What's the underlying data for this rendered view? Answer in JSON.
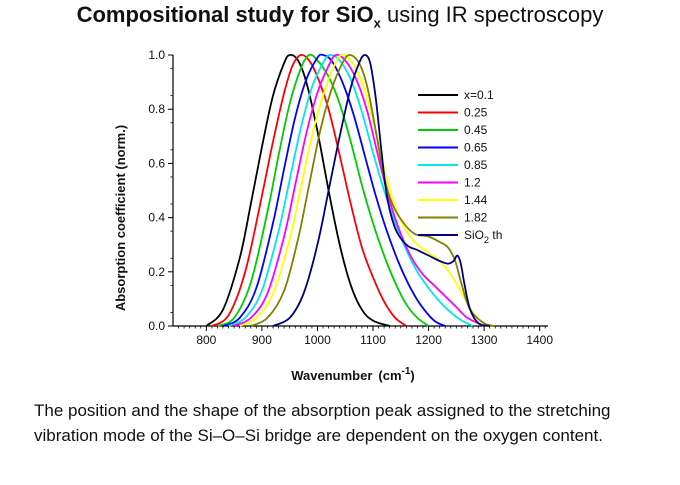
{
  "title": {
    "bold_text": "Compositional study for SiO",
    "subscript": "x",
    "normal_text": " using IR spectroscopy"
  },
  "caption": "The position and the shape of the absorption peak assigned to the stretching vibration mode of the Si–O–Si bridge are dependent on the oxygen content.",
  "chart_data": {
    "type": "line",
    "xlabel": "Wavenumber (cm-1)",
    "xlabel_main": "Wavenumber",
    "xlabel_unit_base": "(cm",
    "xlabel_unit_sup": "-1",
    "xlabel_unit_close": ")",
    "ylabel": "Absorption coefficient (norm.)",
    "xlim": [
      740,
      1415
    ],
    "ylim": [
      0,
      1.0
    ],
    "xticks": [
      800,
      900,
      1000,
      1100,
      1200,
      1300,
      1400
    ],
    "yticks": [
      0.0,
      0.2,
      0.4,
      0.6,
      0.8,
      1.0
    ],
    "ytick_labels": [
      "0.0",
      "0.2",
      "0.4",
      "0.6",
      "0.8",
      "1.0"
    ],
    "legend_position": "top-right",
    "series": [
      {
        "name": "x=0.1",
        "color": "#000000",
        "points": [
          [
            800,
            0.0
          ],
          [
            830,
            0.06
          ],
          [
            860,
            0.25
          ],
          [
            880,
            0.45
          ],
          [
            900,
            0.66
          ],
          [
            920,
            0.85
          ],
          [
            940,
            0.97
          ],
          [
            950,
            1.0
          ],
          [
            965,
            0.98
          ],
          [
            980,
            0.9
          ],
          [
            1000,
            0.72
          ],
          [
            1020,
            0.5
          ],
          [
            1040,
            0.3
          ],
          [
            1060,
            0.15
          ],
          [
            1080,
            0.06
          ],
          [
            1100,
            0.02
          ],
          [
            1130,
            0.0
          ]
        ]
      },
      {
        "name": "0.25",
        "color": "#ff0000",
        "points": [
          [
            810,
            0.0
          ],
          [
            840,
            0.04
          ],
          [
            870,
            0.2
          ],
          [
            900,
            0.48
          ],
          [
            920,
            0.68
          ],
          [
            940,
            0.86
          ],
          [
            955,
            0.96
          ],
          [
            970,
            1.0
          ],
          [
            985,
            0.98
          ],
          [
            1000,
            0.92
          ],
          [
            1020,
            0.8
          ],
          [
            1040,
            0.63
          ],
          [
            1060,
            0.45
          ],
          [
            1080,
            0.29
          ],
          [
            1100,
            0.18
          ],
          [
            1120,
            0.09
          ],
          [
            1140,
            0.03
          ],
          [
            1160,
            0.0
          ]
        ]
      },
      {
        "name": "0.45",
        "color": "#00cc00",
        "points": [
          [
            820,
            0.0
          ],
          [
            850,
            0.03
          ],
          [
            880,
            0.16
          ],
          [
            910,
            0.42
          ],
          [
            930,
            0.63
          ],
          [
            950,
            0.82
          ],
          [
            970,
            0.95
          ],
          [
            985,
            1.0
          ],
          [
            1000,
            0.98
          ],
          [
            1020,
            0.92
          ],
          [
            1040,
            0.82
          ],
          [
            1060,
            0.68
          ],
          [
            1080,
            0.52
          ],
          [
            1100,
            0.38
          ],
          [
            1120,
            0.26
          ],
          [
            1140,
            0.16
          ],
          [
            1160,
            0.08
          ],
          [
            1180,
            0.03
          ],
          [
            1200,
            0.0
          ]
        ]
      },
      {
        "name": "0.65",
        "color": "#0000ff",
        "points": [
          [
            830,
            0.0
          ],
          [
            860,
            0.03
          ],
          [
            890,
            0.14
          ],
          [
            920,
            0.38
          ],
          [
            940,
            0.58
          ],
          [
            960,
            0.77
          ],
          [
            980,
            0.91
          ],
          [
            1000,
            0.99
          ],
          [
            1010,
            1.0
          ],
          [
            1025,
            0.98
          ],
          [
            1045,
            0.9
          ],
          [
            1065,
            0.78
          ],
          [
            1085,
            0.63
          ],
          [
            1105,
            0.48
          ],
          [
            1125,
            0.35
          ],
          [
            1145,
            0.24
          ],
          [
            1165,
            0.15
          ],
          [
            1185,
            0.08
          ],
          [
            1210,
            0.02
          ],
          [
            1230,
            0.0
          ]
        ]
      },
      {
        "name": "0.85",
        "color": "#00e5ee",
        "points": [
          [
            840,
            0.0
          ],
          [
            870,
            0.03
          ],
          [
            900,
            0.13
          ],
          [
            930,
            0.35
          ],
          [
            950,
            0.54
          ],
          [
            970,
            0.73
          ],
          [
            990,
            0.88
          ],
          [
            1010,
            0.97
          ],
          [
            1022,
            1.0
          ],
          [
            1040,
            0.98
          ],
          [
            1060,
            0.91
          ],
          [
            1080,
            0.79
          ],
          [
            1100,
            0.64
          ],
          [
            1120,
            0.5
          ],
          [
            1140,
            0.38
          ],
          [
            1160,
            0.28
          ],
          [
            1180,
            0.2
          ],
          [
            1200,
            0.14
          ],
          [
            1220,
            0.09
          ],
          [
            1240,
            0.05
          ],
          [
            1260,
            0.02
          ],
          [
            1280,
            0.0
          ]
        ]
      },
      {
        "name": "1.2",
        "color": "#ff00ff",
        "points": [
          [
            850,
            0.0
          ],
          [
            880,
            0.03
          ],
          [
            910,
            0.12
          ],
          [
            940,
            0.33
          ],
          [
            960,
            0.52
          ],
          [
            980,
            0.71
          ],
          [
            1000,
            0.86
          ],
          [
            1020,
            0.96
          ],
          [
            1033,
            1.0
          ],
          [
            1050,
            0.98
          ],
          [
            1070,
            0.91
          ],
          [
            1090,
            0.79
          ],
          [
            1110,
            0.62
          ],
          [
            1130,
            0.46
          ],
          [
            1150,
            0.34
          ],
          [
            1170,
            0.25
          ],
          [
            1190,
            0.19
          ],
          [
            1210,
            0.15
          ],
          [
            1230,
            0.11
          ],
          [
            1250,
            0.07
          ],
          [
            1270,
            0.03
          ],
          [
            1300,
            0.0
          ]
        ]
      },
      {
        "name": "1.44",
        "color": "#ffff00",
        "points": [
          [
            860,
            0.0
          ],
          [
            890,
            0.03
          ],
          [
            920,
            0.12
          ],
          [
            950,
            0.32
          ],
          [
            970,
            0.51
          ],
          [
            990,
            0.7
          ],
          [
            1010,
            0.85
          ],
          [
            1030,
            0.96
          ],
          [
            1043,
            1.0
          ],
          [
            1060,
            0.98
          ],
          [
            1080,
            0.9
          ],
          [
            1100,
            0.76
          ],
          [
            1120,
            0.58
          ],
          [
            1140,
            0.44
          ],
          [
            1160,
            0.35
          ],
          [
            1180,
            0.3
          ],
          [
            1200,
            0.27
          ],
          [
            1220,
            0.24
          ],
          [
            1240,
            0.19
          ],
          [
            1260,
            0.12
          ],
          [
            1280,
            0.05
          ],
          [
            1300,
            0.01
          ],
          [
            1320,
            0.0
          ]
        ]
      },
      {
        "name": "1.82",
        "color": "#808000",
        "points": [
          [
            880,
            0.0
          ],
          [
            910,
            0.03
          ],
          [
            940,
            0.13
          ],
          [
            965,
            0.32
          ],
          [
            985,
            0.52
          ],
          [
            1005,
            0.72
          ],
          [
            1025,
            0.87
          ],
          [
            1045,
            0.97
          ],
          [
            1058,
            1.0
          ],
          [
            1075,
            0.97
          ],
          [
            1090,
            0.88
          ],
          [
            1105,
            0.72
          ],
          [
            1120,
            0.55
          ],
          [
            1135,
            0.45
          ],
          [
            1155,
            0.38
          ],
          [
            1175,
            0.34
          ],
          [
            1200,
            0.33
          ],
          [
            1220,
            0.31
          ],
          [
            1235,
            0.29
          ],
          [
            1248,
            0.24
          ],
          [
            1260,
            0.15
          ],
          [
            1275,
            0.06
          ],
          [
            1300,
            0.01
          ],
          [
            1320,
            0.0
          ]
        ]
      },
      {
        "name": "SiO2 th",
        "name_base": "SiO",
        "name_sub": "2",
        "name_suffix": " th",
        "color": "#000080",
        "points": [
          [
            920,
            0.0
          ],
          [
            950,
            0.03
          ],
          [
            975,
            0.12
          ],
          [
            1000,
            0.3
          ],
          [
            1020,
            0.5
          ],
          [
            1040,
            0.7
          ],
          [
            1060,
            0.88
          ],
          [
            1075,
            0.97
          ],
          [
            1085,
            1.0
          ],
          [
            1095,
            0.97
          ],
          [
            1105,
            0.84
          ],
          [
            1115,
            0.65
          ],
          [
            1125,
            0.48
          ],
          [
            1140,
            0.36
          ],
          [
            1160,
            0.3
          ],
          [
            1180,
            0.28
          ],
          [
            1200,
            0.26
          ],
          [
            1220,
            0.24
          ],
          [
            1235,
            0.23
          ],
          [
            1245,
            0.24
          ],
          [
            1252,
            0.26
          ],
          [
            1258,
            0.23
          ],
          [
            1265,
            0.15
          ],
          [
            1275,
            0.06
          ],
          [
            1290,
            0.01
          ],
          [
            1310,
            0.0
          ]
        ]
      }
    ]
  }
}
